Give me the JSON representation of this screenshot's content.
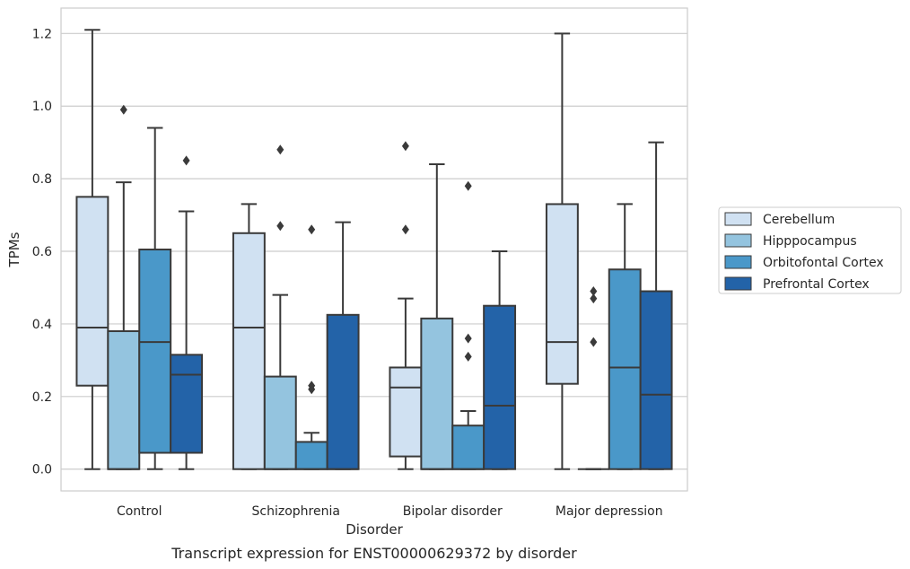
{
  "chart_data": {
    "type": "box",
    "caption": "Transcript expression for ENST00000629372 by disorder",
    "xlabel": "Disorder",
    "ylabel": "TPMs",
    "ylim": [
      -0.06,
      1.27
    ],
    "yticks": [
      0.0,
      0.2,
      0.4,
      0.6,
      0.8,
      1.0,
      1.2
    ],
    "ytick_labels": [
      "0.0",
      "0.2",
      "0.4",
      "0.6",
      "0.8",
      "1.0",
      "1.2"
    ],
    "grid": "horizontal",
    "legend_position": "right",
    "categories": [
      "Control",
      "Schizophrenia",
      "Bipolar disorder",
      "Major depression"
    ],
    "series": [
      {
        "name": "Cerebellum",
        "color": "#d0e1f2",
        "boxes": [
          {
            "q1": 0.23,
            "median": 0.39,
            "q3": 0.75,
            "whisker_low": 0.0,
            "whisker_high": 1.21,
            "outliers": []
          },
          {
            "q1": 0.0,
            "median": 0.39,
            "q3": 0.65,
            "whisker_low": 0.0,
            "whisker_high": 0.73,
            "outliers": []
          },
          {
            "q1": 0.035,
            "median": 0.225,
            "q3": 0.28,
            "whisker_low": 0.0,
            "whisker_high": 0.47,
            "outliers": [
              0.66,
              0.89
            ]
          },
          {
            "q1": 0.235,
            "median": 0.35,
            "q3": 0.73,
            "whisker_low": 0.0,
            "whisker_high": 1.2,
            "outliers": []
          }
        ]
      },
      {
        "name": "Hipppocampus",
        "color": "#94c4df",
        "boxes": [
          {
            "q1": 0.0,
            "median": 0.0,
            "q3": 0.38,
            "whisker_low": 0.0,
            "whisker_high": 0.79,
            "outliers": [
              0.99
            ]
          },
          {
            "q1": 0.0,
            "median": 0.0,
            "q3": 0.255,
            "whisker_low": 0.0,
            "whisker_high": 0.48,
            "outliers": [
              0.67,
              0.88
            ]
          },
          {
            "q1": 0.0,
            "median": 0.0,
            "q3": 0.415,
            "whisker_low": 0.0,
            "whisker_high": 0.84,
            "outliers": []
          },
          {
            "q1": 0.0,
            "median": 0.0,
            "q3": 0.0,
            "whisker_low": 0.0,
            "whisker_high": 0.0,
            "outliers": [
              0.35,
              0.47,
              0.49
            ]
          }
        ]
      },
      {
        "name": "Orbitofontal Cortex",
        "color": "#4a98c9",
        "boxes": [
          {
            "q1": 0.045,
            "median": 0.35,
            "q3": 0.605,
            "whisker_low": 0.0,
            "whisker_high": 0.94,
            "outliers": []
          },
          {
            "q1": 0.0,
            "median": 0.0,
            "q3": 0.075,
            "whisker_low": 0.0,
            "whisker_high": 0.1,
            "outliers": [
              0.22,
              0.23,
              0.66
            ]
          },
          {
            "q1": 0.0,
            "median": 0.0,
            "q3": 0.12,
            "whisker_low": 0.0,
            "whisker_high": 0.16,
            "outliers": [
              0.31,
              0.36,
              0.78
            ]
          },
          {
            "q1": 0.0,
            "median": 0.28,
            "q3": 0.55,
            "whisker_low": 0.0,
            "whisker_high": 0.73,
            "outliers": []
          }
        ]
      },
      {
        "name": "Prefrontal Cortex",
        "color": "#2363a8",
        "boxes": [
          {
            "q1": 0.045,
            "median": 0.26,
            "q3": 0.315,
            "whisker_low": 0.0,
            "whisker_high": 0.71,
            "outliers": [
              0.85
            ]
          },
          {
            "q1": 0.0,
            "median": 0.0,
            "q3": 0.425,
            "whisker_low": 0.0,
            "whisker_high": 0.68,
            "outliers": []
          },
          {
            "q1": 0.0,
            "median": 0.175,
            "q3": 0.45,
            "whisker_low": 0.0,
            "whisker_high": 0.6,
            "outliers": []
          },
          {
            "q1": 0.0,
            "median": 0.205,
            "q3": 0.49,
            "whisker_low": 0.0,
            "whisker_high": 0.9,
            "outliers": []
          }
        ]
      }
    ]
  }
}
